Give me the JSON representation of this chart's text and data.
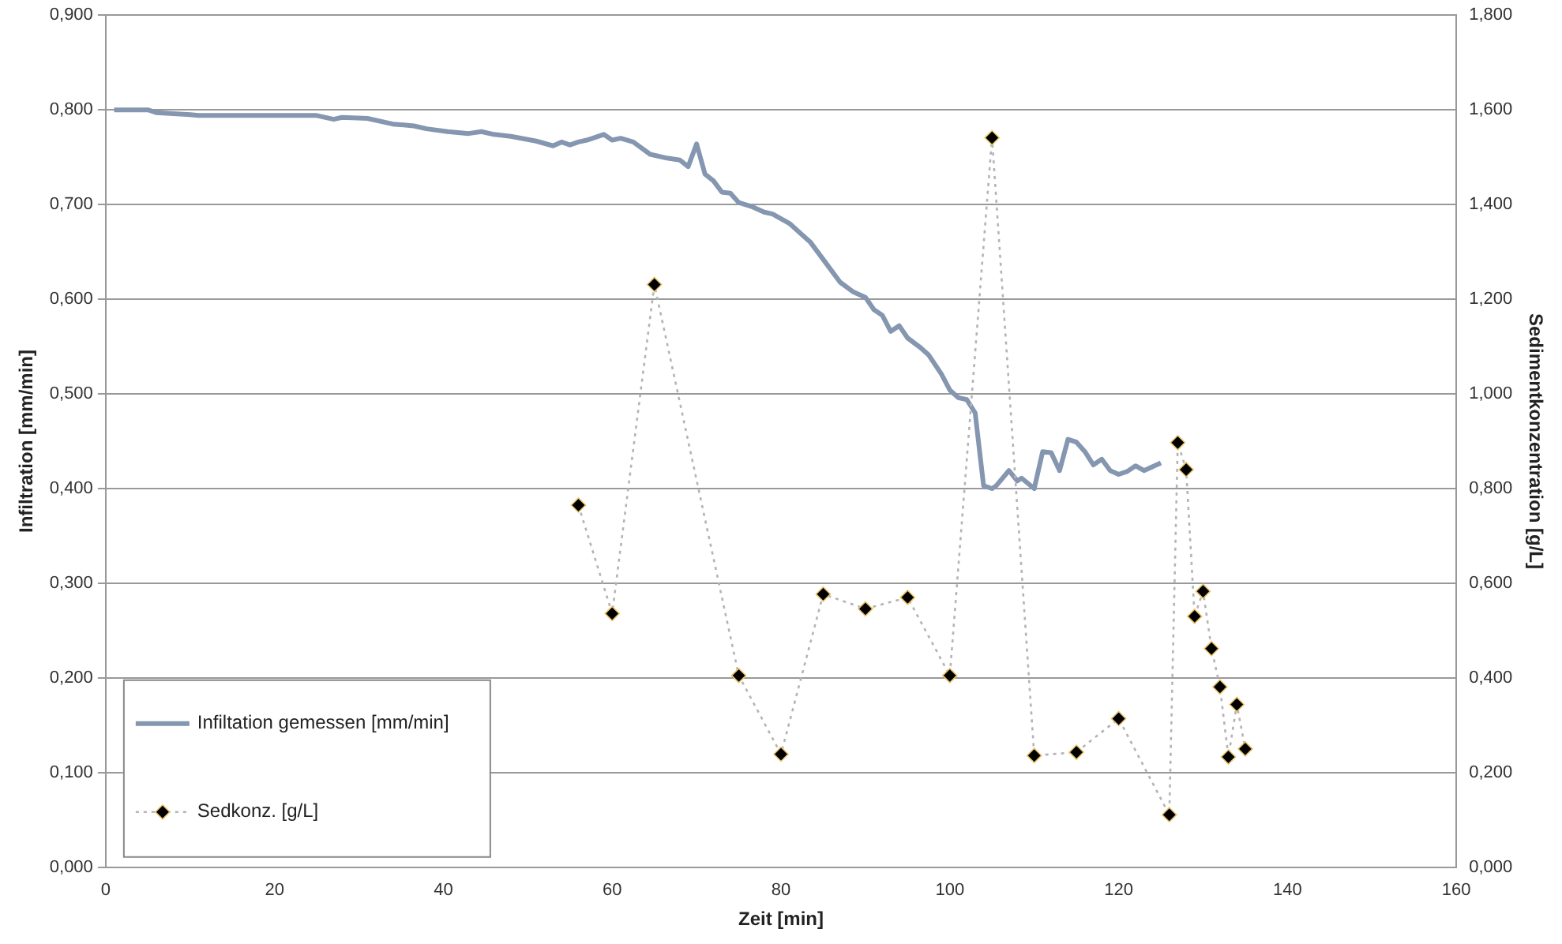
{
  "chart_data": {
    "type": "line",
    "xlabel": "Zeit [min]",
    "ylabel": "Infiltration [mm/min]",
    "y2label": "Sedimentkonzentration [g/L]",
    "xlim": [
      0,
      160
    ],
    "xticks": [
      0,
      20,
      40,
      60,
      80,
      100,
      120,
      140,
      160
    ],
    "ylim": [
      0,
      0.9
    ],
    "yticks": [
      {
        "value": 0,
        "label": "0,000"
      },
      {
        "value": 0.1,
        "label": "0,100"
      },
      {
        "value": 0.2,
        "label": "0,200"
      },
      {
        "value": 0.3,
        "label": "0,300"
      },
      {
        "value": 0.4,
        "label": "0,400"
      },
      {
        "value": 0.5,
        "label": "0,500"
      },
      {
        "value": 0.6,
        "label": "0,600"
      },
      {
        "value": 0.7,
        "label": "0,700"
      },
      {
        "value": 0.8,
        "label": "0,800"
      },
      {
        "value": 0.9,
        "label": "0,900"
      }
    ],
    "y2lim": [
      0,
      1.8
    ],
    "y2ticks": [
      {
        "value": 0,
        "label": "0,000"
      },
      {
        "value": 0.2,
        "label": "0,200"
      },
      {
        "value": 0.4,
        "label": "0,400"
      },
      {
        "value": 0.6,
        "label": "0,600"
      },
      {
        "value": 0.8,
        "label": "0,800"
      },
      {
        "value": 1,
        "label": "1,000"
      },
      {
        "value": 1.2,
        "label": "1,200"
      },
      {
        "value": 1.4,
        "label": "1,400"
      },
      {
        "value": 1.6,
        "label": "1,600"
      },
      {
        "value": 1.8,
        "label": "1,800"
      }
    ],
    "grid": "y",
    "legend": "bottom left",
    "series": [
      {
        "name": "Infiltation gemessen [mm/min]",
        "color": "#8496b0",
        "marker": "none",
        "line_style": "solid",
        "x": [
          1,
          5,
          6,
          10,
          11,
          25,
          27,
          28,
          31,
          34,
          36.5,
          38,
          40.5,
          43,
          44.5,
          46,
          48,
          51,
          53,
          54,
          55,
          56,
          57,
          59,
          60,
          61,
          62.5,
          64.5,
          66.5,
          68,
          69,
          70,
          71,
          72,
          73,
          74,
          75,
          76.5,
          78,
          79,
          81,
          83.5,
          85.5,
          87,
          88.5,
          90,
          91,
          92,
          93,
          94,
          95,
          96.5,
          97.5,
          99,
          100,
          101,
          102,
          103,
          104,
          105,
          105.5,
          107,
          108,
          108.5,
          110,
          111,
          112,
          113,
          114,
          115,
          116,
          117,
          118,
          119,
          120,
          121,
          122,
          123,
          125
        ],
        "values": [
          0.8,
          0.8,
          0.797,
          0.795,
          0.794,
          0.794,
          0.79,
          0.792,
          0.791,
          0.785,
          0.783,
          0.78,
          0.777,
          0.775,
          0.777,
          0.774,
          0.772,
          0.767,
          0.762,
          0.766,
          0.763,
          0.766,
          0.768,
          0.774,
          0.768,
          0.77,
          0.766,
          0.753,
          0.749,
          0.747,
          0.74,
          0.764,
          0.732,
          0.725,
          0.713,
          0.712,
          0.702,
          0.698,
          0.692,
          0.69,
          0.68,
          0.66,
          0.636,
          0.618,
          0.608,
          0.602,
          0.589,
          0.583,
          0.566,
          0.572,
          0.559,
          0.549,
          0.541,
          0.521,
          0.504,
          0.496,
          0.494,
          0.48,
          0.403,
          0.4,
          0.403,
          0.419,
          0.408,
          0.411,
          0.4,
          0.439,
          0.438,
          0.419,
          0.452,
          0.449,
          0.439,
          0.425,
          0.431,
          0.419,
          0.415,
          0.418,
          0.424,
          0.419,
          0.427
        ]
      },
      {
        "name": "Sedkonz. [g/L]",
        "axis": "y2",
        "color": "#000000",
        "marker": "diamond",
        "line_style": "dotted",
        "x": [
          56,
          60,
          65,
          75,
          80,
          85,
          90,
          95,
          100,
          105,
          110,
          115,
          120,
          126,
          127,
          128,
          129,
          130,
          131,
          132,
          133,
          134,
          135
        ],
        "values": [
          0.765,
          0.536,
          1.231,
          0.405,
          0.239,
          0.577,
          0.546,
          0.57,
          0.405,
          1.541,
          0.236,
          0.243,
          0.314,
          0.111,
          0.897,
          0.84,
          0.53,
          0.583,
          0.462,
          0.381,
          0.233,
          0.344,
          0.25
        ]
      }
    ]
  }
}
